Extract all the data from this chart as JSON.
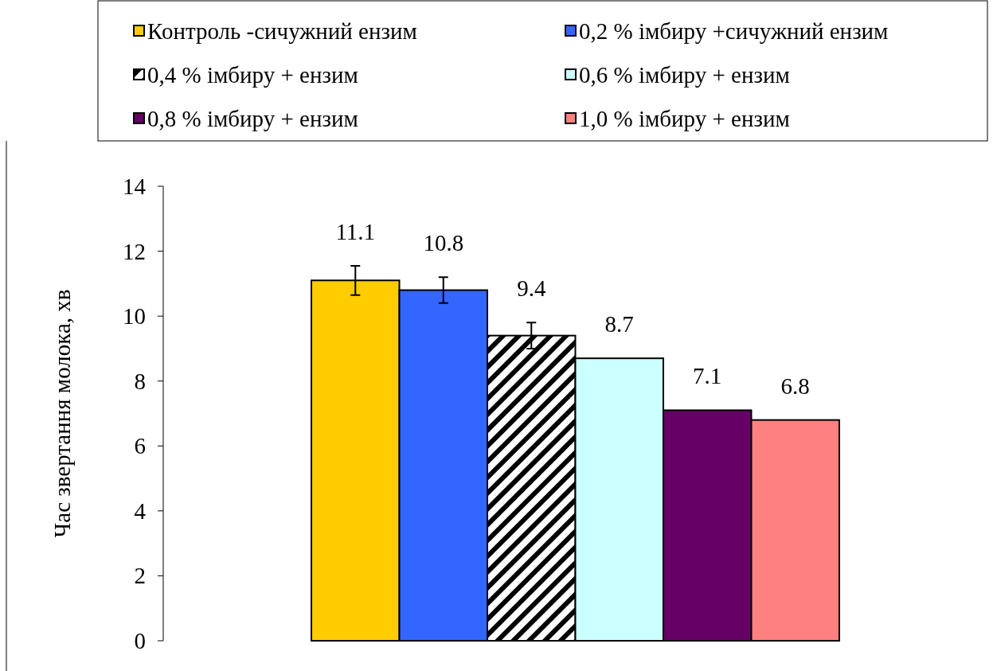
{
  "chart_data": {
    "type": "bar",
    "ylabel": "Час звертання молока, хв",
    "categories": [
      null
    ],
    "ylim": [
      0,
      14
    ],
    "yticks": [
      0,
      2,
      4,
      6,
      8,
      10,
      12,
      14
    ],
    "legend": "top",
    "data_labels": true,
    "series": [
      {
        "name": "Контроль -сичужний ензим",
        "color": "#ffcc00",
        "values": [
          11.1
        ],
        "errors": [
          0.45
        ]
      },
      {
        "name": "0,2 % імбиру +сичужний ензим",
        "color": "#3366ff",
        "values": [
          10.8
        ],
        "errors": [
          0.4
        ]
      },
      {
        "name": "0,4 % імбиру + ензим",
        "color": "#000000",
        "values": [
          9.4
        ],
        "errors": [
          0.4
        ]
      },
      {
        "name": "0,6 % імбиру + ензим",
        "color": "#ccffff",
        "values": [
          8.7
        ]
      },
      {
        "name": "0,8 % імбиру + ензим",
        "color": "#660066",
        "values": [
          7.1
        ]
      },
      {
        "name": "1,0 % імбиру + ензим",
        "color": "#ff8080",
        "values": [
          6.8
        ]
      }
    ]
  }
}
